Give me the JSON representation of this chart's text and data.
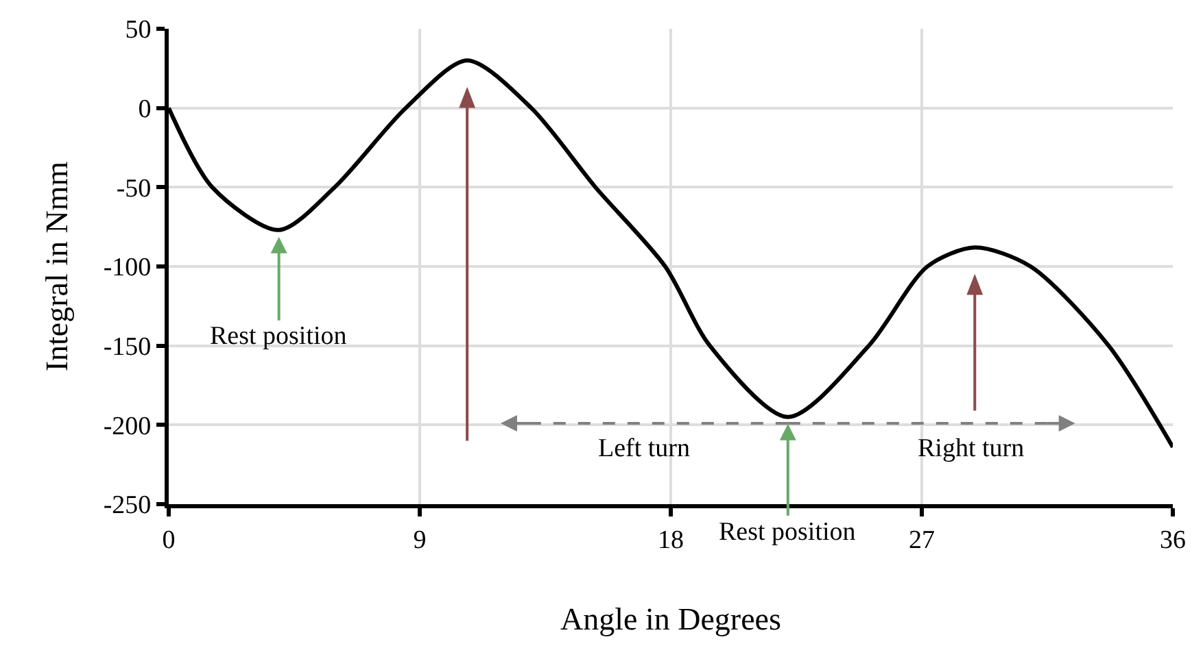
{
  "chart_data": {
    "type": "line",
    "xlabel": "Angle in Degrees",
    "ylabel": "Integral in Nmm",
    "x": [
      0,
      1.56,
      3.95,
      5.95,
      8.5,
      10.7,
      13.0,
      15.3,
      17.8,
      19.4,
      22.2,
      25.1,
      27.2,
      28.9,
      30.9,
      33.7,
      36
    ],
    "series": [
      {
        "color": "#000000",
        "values": [
          0,
          -50,
          -77,
          -50,
          0,
          30,
          0,
          -50,
          -100,
          -150,
          -195,
          -150,
          -100,
          -88,
          -100,
          -150,
          -214
        ]
      }
    ],
    "xlim": [
      0,
      36
    ],
    "xticks": [
      0,
      9,
      18,
      27,
      36
    ],
    "ylim": [
      -250,
      50
    ],
    "yticks": [
      -250,
      -200,
      -150,
      -100,
      -50,
      0,
      50
    ],
    "grid": true,
    "marker": "none",
    "line_style": "solid",
    "annotations": [
      {
        "text": "Rest position",
        "x": 3.95,
        "y": -77
      },
      {
        "text": "Rest position",
        "x": 22.2,
        "y": -195
      },
      "Left turn",
      "Right turn"
    ]
  }
}
